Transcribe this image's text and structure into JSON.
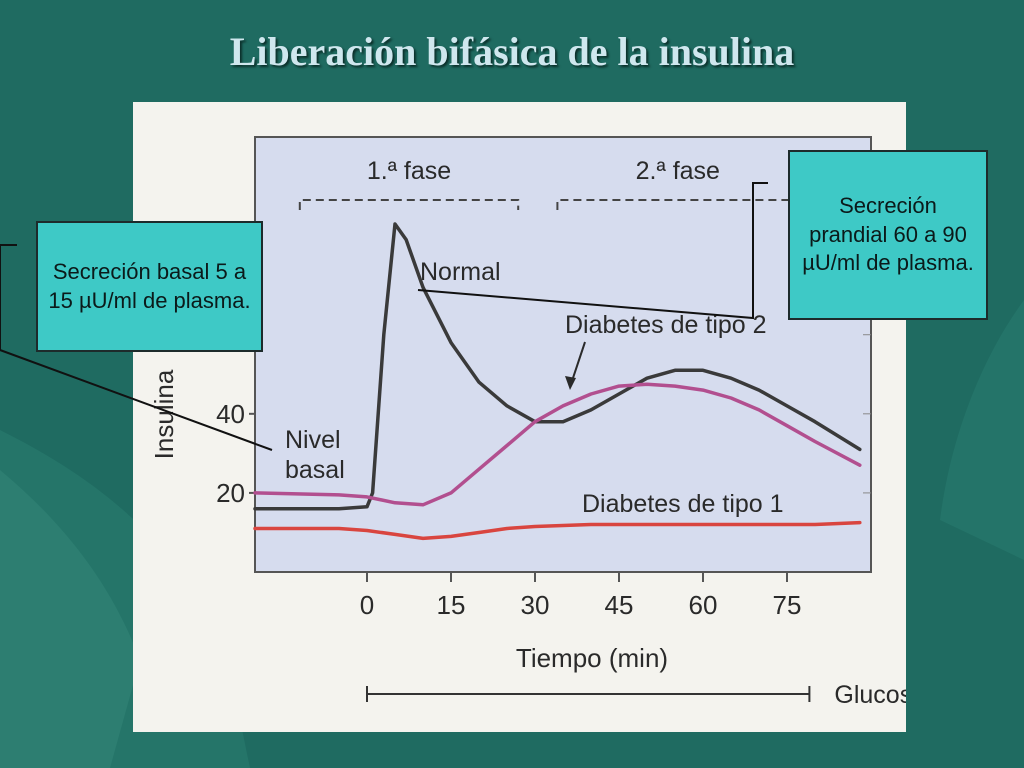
{
  "slide": {
    "title": "Liberación bifásica de la insulina"
  },
  "callouts": {
    "basal": "Secreción basal 5 a 15 µU/ml de plasma.",
    "prandial": "Secreción prandial 60 a 90 µU/ml de plasma."
  },
  "colors": {
    "background": "#1f6b61",
    "plot_area": "#d6dcee",
    "callout": "#3ec9c6",
    "normal": "#3a3a3a",
    "type2": "#b24f8f",
    "type1": "#d9453f"
  },
  "chart_data": {
    "type": "line",
    "xlabel": "Tiempo (min)",
    "ylabel": "Insulina",
    "x_ticks": [
      0,
      15,
      30,
      45,
      60,
      75
    ],
    "y_ticks": [
      20,
      40
    ],
    "xlim": [
      -20,
      90
    ],
    "ylim": [
      0,
      110
    ],
    "phases": [
      {
        "label": "1.ª fase",
        "from": -12,
        "to": 27
      },
      {
        "label": "2.ª fase",
        "from": 34,
        "to": 77
      }
    ],
    "glucose_label": "Glucosa",
    "glucose_range": [
      0,
      79
    ],
    "annotations": [
      "Normal",
      "Diabetes de tipo 2",
      "Nivel basal",
      "Diabetes de tipo 1"
    ],
    "series": [
      {
        "name": "Normal",
        "color": "#3a3a3a",
        "x": [
          -20,
          -5,
          0,
          1,
          3,
          5,
          7,
          10,
          15,
          20,
          25,
          30,
          35,
          40,
          45,
          50,
          55,
          60,
          65,
          70,
          75,
          80,
          88
        ],
        "y": [
          16,
          16,
          16.5,
          20,
          60,
          88,
          84,
          72,
          58,
          48,
          42,
          38,
          38,
          41,
          45,
          49,
          51,
          51,
          49,
          46,
          42,
          38,
          31
        ]
      },
      {
        "name": "Diabetes de tipo 2",
        "color": "#b24f8f",
        "x": [
          -20,
          -5,
          0,
          5,
          10,
          15,
          20,
          25,
          30,
          35,
          40,
          45,
          50,
          55,
          60,
          65,
          70,
          75,
          80,
          88
        ],
        "y": [
          20,
          19.5,
          19,
          17.5,
          17,
          20,
          26,
          32,
          38,
          42,
          45,
          47,
          47.5,
          47,
          46,
          44,
          41,
          37,
          33,
          27
        ]
      },
      {
        "name": "Diabetes de tipo 1",
        "color": "#d9453f",
        "x": [
          -20,
          -5,
          0,
          5,
          10,
          15,
          20,
          25,
          30,
          40,
          50,
          60,
          70,
          80,
          88
        ],
        "y": [
          11,
          11,
          10.5,
          9.5,
          8.5,
          9,
          10,
          11,
          11.5,
          12,
          12,
          12,
          12,
          12,
          12.5
        ]
      }
    ]
  }
}
